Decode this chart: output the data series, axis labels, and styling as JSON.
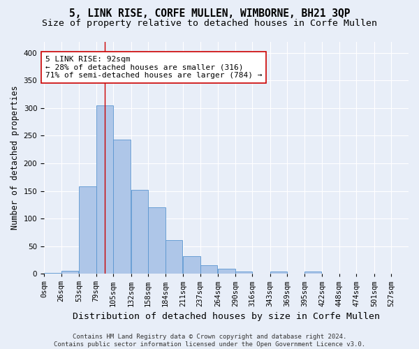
{
  "title": "5, LINK RISE, CORFE MULLEN, WIMBORNE, BH21 3QP",
  "subtitle": "Size of property relative to detached houses in Corfe Mullen",
  "xlabel": "Distribution of detached houses by size in Corfe Mullen",
  "ylabel": "Number of detached properties",
  "bar_values": [
    2,
    5,
    158,
    305,
    243,
    152,
    120,
    61,
    32,
    15,
    9,
    4,
    0,
    4,
    0,
    4,
    0,
    0,
    0,
    0,
    0
  ],
  "bin_edges": [
    0,
    26,
    53,
    79,
    105,
    132,
    158,
    184,
    211,
    237,
    264,
    290,
    316,
    343,
    369,
    395,
    422,
    448,
    474,
    501,
    527
  ],
  "tick_labels": [
    "0sqm",
    "26sqm",
    "53sqm",
    "79sqm",
    "105sqm",
    "132sqm",
    "158sqm",
    "184sqm",
    "211sqm",
    "237sqm",
    "264sqm",
    "290sqm",
    "316sqm",
    "343sqm",
    "369sqm",
    "395sqm",
    "422sqm",
    "448sqm",
    "474sqm",
    "501sqm",
    "527sqm"
  ],
  "bar_color": "#aec6e8",
  "bar_edgecolor": "#5a96d0",
  "property_line_x": 92,
  "property_line_color": "#cc0000",
  "annotation_line1": "5 LINK RISE: 92sqm",
  "annotation_line2": "← 28% of detached houses are smaller (316)",
  "annotation_line3": "71% of semi-detached houses are larger (784) →",
  "annotation_box_color": "#ffffff",
  "annotation_box_edgecolor": "#cc0000",
  "ylim": [
    0,
    420
  ],
  "yticks": [
    0,
    50,
    100,
    150,
    200,
    250,
    300,
    350,
    400
  ],
  "background_color": "#e8eef8",
  "axes_background_color": "#e8eef8",
  "footer_text": "Contains HM Land Registry data © Crown copyright and database right 2024.\nContains public sector information licensed under the Open Government Licence v3.0.",
  "title_fontsize": 10.5,
  "subtitle_fontsize": 9.5,
  "xlabel_fontsize": 9.5,
  "ylabel_fontsize": 8.5,
  "tick_fontsize": 7.5,
  "annotation_fontsize": 8,
  "footer_fontsize": 6.5
}
